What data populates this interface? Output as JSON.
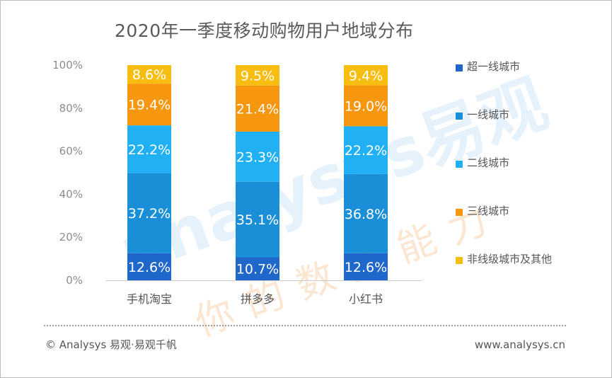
{
  "chart_data": {
    "type": "bar",
    "stacked": true,
    "title": "2020年一季度移动购物用户地域分布",
    "xlabel": "",
    "ylabel": "",
    "ylim": [
      0,
      100
    ],
    "y_ticks": [
      "0%",
      "20%",
      "40%",
      "60%",
      "80%",
      "100%"
    ],
    "categories": [
      "手机淘宝",
      "拼多多",
      "小红书"
    ],
    "series": [
      {
        "name": "超一线城市",
        "color": "#1f67c8",
        "values": [
          12.6,
          10.7,
          12.6
        ],
        "labels": [
          "12.6%",
          "10.7%",
          "12.6%"
        ]
      },
      {
        "name": "一线城市",
        "color": "#1a8fd8",
        "values": [
          37.2,
          35.1,
          36.8
        ],
        "labels": [
          "37.2%",
          "35.1%",
          "36.8%"
        ]
      },
      {
        "name": "二线城市",
        "color": "#22b0f5",
        "values": [
          22.2,
          23.3,
          22.2
        ],
        "labels": [
          "22.2%",
          "23.3%",
          "22.2%"
        ]
      },
      {
        "name": "三线城市",
        "color": "#f7960f",
        "values": [
          19.4,
          21.4,
          19.0
        ],
        "labels": [
          "19.4%",
          "21.4%",
          "19.0%"
        ]
      },
      {
        "name": "非线级城市及其他",
        "color": "#f8bd11",
        "values": [
          8.6,
          9.5,
          9.4
        ],
        "labels": [
          "8.6%",
          "9.5%",
          "9.4%"
        ]
      }
    ],
    "grid": false,
    "legend_position": "right"
  },
  "footer": {
    "copyright": "© Analysys 易观·易观千帆",
    "website": "www.analysys.cn"
  },
  "watermark": {
    "brand": "analysys易观",
    "slogan": "你的数据能力"
  },
  "colors": {
    "axis": "#c8c8c8",
    "watermark": "#e6f3fb",
    "watermark_orange": "#fdebd9"
  }
}
